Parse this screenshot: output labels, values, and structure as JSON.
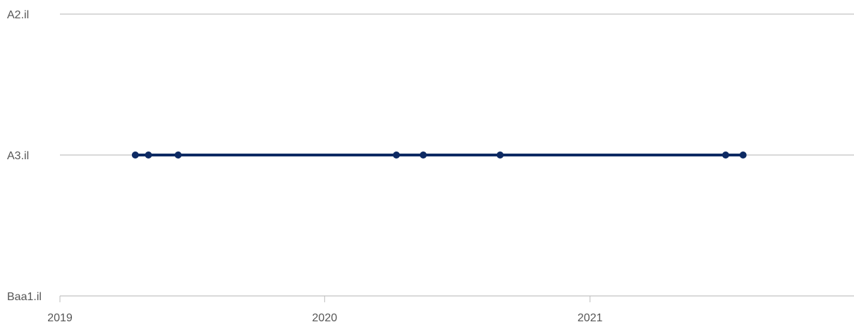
{
  "chart_data": {
    "type": "line",
    "title": "",
    "xlabel": "",
    "ylabel": "",
    "y_categories": [
      "Baa1.il",
      "A3.il",
      "A2.il"
    ],
    "x_ticks": [
      "2019",
      "2020",
      "2021"
    ],
    "xlim": [
      "2019-01-01",
      "2021-12-31"
    ],
    "grid": true,
    "series": [
      {
        "color": "#0d2a63",
        "points": [
          {
            "x": "2019-04-15",
            "y": "A3.il"
          },
          {
            "x": "2019-05-03",
            "y": "A3.il"
          },
          {
            "x": "2019-06-13",
            "y": "A3.il"
          },
          {
            "x": "2020-04-09",
            "y": "A3.il"
          },
          {
            "x": "2020-05-16",
            "y": "A3.il"
          },
          {
            "x": "2020-08-30",
            "y": "A3.il"
          },
          {
            "x": "2021-07-07",
            "y": "A3.il"
          },
          {
            "x": "2021-07-31",
            "y": "A3.il"
          }
        ]
      }
    ],
    "colors": {
      "gridline": "#d9d9d9",
      "axis_text": "#555555"
    }
  }
}
